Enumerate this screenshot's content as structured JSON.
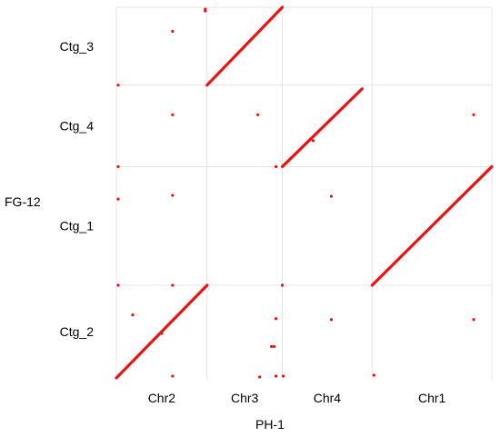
{
  "chart_data": {
    "type": "scatter",
    "title": "",
    "xlabel": "PH-1",
    "ylabel": "FG-12",
    "x_categories": [
      "Chr2",
      "Chr3",
      "Chr4",
      "Chr1"
    ],
    "x_segment_lengths": [
      1.0,
      0.83,
      0.99,
      1.32
    ],
    "y_categories": [
      "Ctg_3",
      "Ctg_4",
      "Ctg_1",
      "Ctg_2"
    ],
    "y_segment_lengths": [
      0.84,
      0.88,
      1.28,
      1.0
    ],
    "grid": true,
    "legend": "none",
    "color": "#ee1111",
    "diagonal_segments": [
      {
        "name": "Ctg_3 vs Chr3",
        "x_start": 1.0,
        "y_start": 0.84,
        "x_end": 1.83,
        "y_end": 0.0
      },
      {
        "name": "Ctg_4 vs Chr4",
        "x_start": 1.83,
        "y_start": 1.72,
        "x_end": 2.71,
        "y_end": 0.88
      },
      {
        "name": "Ctg_1 vs Chr1",
        "x_start": 2.82,
        "y_start": 3.0,
        "x_end": 4.14,
        "y_end": 1.72
      },
      {
        "name": "Ctg_2 vs Chr2",
        "x_start": 0.0,
        "y_start": 4.0,
        "x_end": 1.0,
        "y_end": 3.0
      }
    ],
    "points": [
      {
        "x": 0.98,
        "y": 0.02
      },
      {
        "x": 0.98,
        "y": 0.04
      },
      {
        "x": 0.62,
        "y": 0.26
      },
      {
        "x": 0.02,
        "y": 0.84
      },
      {
        "x": 0.62,
        "y": 1.16
      },
      {
        "x": 1.56,
        "y": 1.16
      },
      {
        "x": 3.94,
        "y": 1.16
      },
      {
        "x": 2.17,
        "y": 1.44
      },
      {
        "x": 0.02,
        "y": 1.72
      },
      {
        "x": 1.76,
        "y": 1.72
      },
      {
        "x": 0.02,
        "y": 2.07
      },
      {
        "x": 0.62,
        "y": 2.03
      },
      {
        "x": 2.37,
        "y": 2.04
      },
      {
        "x": 0.02,
        "y": 3.0
      },
      {
        "x": 0.62,
        "y": 3.0
      },
      {
        "x": 1.83,
        "y": 3.0
      },
      {
        "x": 0.18,
        "y": 3.32
      },
      {
        "x": 1.76,
        "y": 3.36
      },
      {
        "x": 2.37,
        "y": 3.37
      },
      {
        "x": 3.94,
        "y": 3.37
      },
      {
        "x": 0.5,
        "y": 3.52
      },
      {
        "x": 1.71,
        "y": 3.66
      },
      {
        "x": 1.74,
        "y": 3.66
      },
      {
        "x": 0.62,
        "y": 3.98
      },
      {
        "x": 1.58,
        "y": 3.99
      },
      {
        "x": 1.76,
        "y": 3.98
      },
      {
        "x": 1.84,
        "y": 3.98
      },
      {
        "x": 2.84,
        "y": 3.97
      }
    ]
  }
}
